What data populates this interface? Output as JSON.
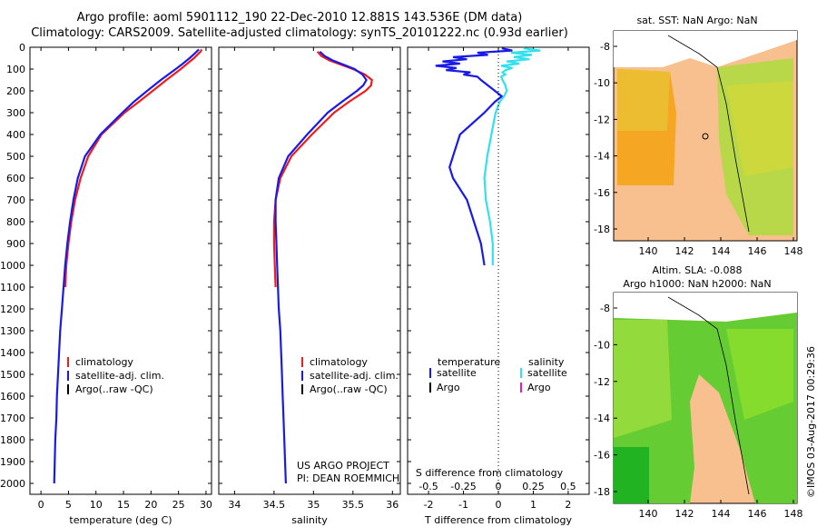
{
  "header": {
    "line1": "Argo profile: aoml 5901112_190 22-Dec-2010 12.881S 143.536E (DM data)",
    "line2": "Climatology: CARS2009. Satellite-adjusted climatology: synTS_20101222.nc (0.93d earlier)"
  },
  "colors": {
    "climatology": "#ee1c1c",
    "satellite": "#1a1ae8",
    "argo": "#000000",
    "sal_satellite": "#33e0ee",
    "sal_argo": "#d020d0",
    "land": "#f7c08e"
  },
  "chart_data": [
    {
      "type": "line",
      "panel": "temperature",
      "xlabel": "temperature (deg C)",
      "ylabel": "",
      "xlim": [
        -2,
        31
      ],
      "ylim": [
        2050,
        0
      ],
      "xticks": [
        "0",
        "5",
        "10",
        "15",
        "20",
        "25",
        "30"
      ],
      "yticks": [
        "0",
        "100",
        "200",
        "300",
        "400",
        "500",
        "600",
        "700",
        "800",
        "900",
        "1000",
        "1100",
        "1200",
        "1300",
        "1400",
        "1500",
        "1600",
        "1700",
        "1800",
        "1900",
        "2000"
      ],
      "legend": [
        "climatology",
        "satellite-adj. clim.",
        "Argo(..raw -QC)"
      ],
      "series": [
        {
          "name": "climatology",
          "depth": [
            10,
            20,
            30,
            50,
            75,
            100,
            150,
            200,
            250,
            300,
            400,
            500,
            600,
            700,
            800,
            900,
            1000,
            1100
          ],
          "values": [
            29.2,
            29.0,
            28.6,
            27.8,
            26.6,
            25.4,
            22.8,
            20.3,
            17.8,
            15.2,
            11.0,
            8.6,
            7.2,
            6.2,
            5.5,
            5.0,
            4.6,
            4.4
          ]
        },
        {
          "name": "satellite-adj. clim.",
          "depth": [
            10,
            20,
            30,
            50,
            75,
            100,
            150,
            200,
            250,
            300,
            400,
            500,
            600,
            700,
            800,
            900,
            1000,
            1100,
            1200,
            1300,
            1400,
            1500,
            1600,
            1700,
            1800,
            1900,
            2000
          ],
          "values": [
            28.7,
            28.3,
            27.9,
            27.0,
            25.8,
            24.5,
            21.8,
            19.3,
            16.9,
            14.8,
            10.8,
            8.0,
            6.7,
            5.9,
            5.3,
            4.8,
            4.4,
            4.1,
            3.8,
            3.5,
            3.3,
            3.1,
            2.9,
            2.8,
            2.6,
            2.5,
            2.4
          ]
        }
      ]
    },
    {
      "type": "line",
      "panel": "salinity",
      "xlabel": "salinity",
      "xlim": [
        33.8,
        36.1
      ],
      "ylim": [
        2050,
        0
      ],
      "xticks": [
        "34",
        "34.5",
        "35",
        "35.5",
        "36"
      ],
      "legend": [
        "climatology",
        "satellite-adj. clim.",
        "Argo(..raw -QC)"
      ],
      "series": [
        {
          "name": "climatology",
          "depth": [
            20,
            40,
            60,
            80,
            100,
            125,
            150,
            175,
            200,
            250,
            300,
            400,
            500,
            600,
            700,
            800,
            900,
            1000,
            1100
          ],
          "values": [
            35.05,
            35.1,
            35.2,
            35.35,
            35.5,
            35.65,
            35.74,
            35.73,
            35.66,
            35.45,
            35.26,
            34.98,
            34.72,
            34.58,
            34.52,
            34.5,
            34.5,
            34.51,
            34.52
          ]
        },
        {
          "name": "satellite-adj. clim.",
          "depth": [
            20,
            40,
            60,
            80,
            100,
            125,
            150,
            175,
            200,
            250,
            300,
            400,
            500,
            600,
            700,
            800,
            900,
            1000,
            1100,
            1200,
            1300,
            1400,
            1500,
            1600,
            1700,
            1800,
            1900,
            2000
          ],
          "values": [
            35.08,
            35.14,
            35.24,
            35.38,
            35.52,
            35.62,
            35.67,
            35.63,
            35.55,
            35.36,
            35.18,
            34.92,
            34.68,
            34.56,
            34.52,
            34.52,
            34.53,
            34.54,
            34.55,
            34.56,
            34.58,
            34.59,
            34.6,
            34.61,
            34.62,
            34.63,
            34.64,
            34.65
          ]
        }
      ],
      "annotation": [
        "US ARGO PROJECT",
        "PI: DEAN ROEMMICH"
      ]
    },
    {
      "type": "line",
      "panel": "difference",
      "xlabel": "T difference from climatology",
      "xlabel_top": "S difference from climatology",
      "xlim": [
        -2.6,
        2.6
      ],
      "ylim": [
        2050,
        0
      ],
      "xticks": [
        "-2",
        "-1",
        "0",
        "1",
        "2"
      ],
      "sticks": [
        "-0.5",
        "-0.25",
        "0",
        "0.25",
        "0.5"
      ],
      "legend_title": [
        "temperature",
        "salinity"
      ],
      "legend": [
        "satellite",
        "Argo",
        "satellite",
        "Argo"
      ],
      "series": [
        {
          "name": "temperature satellite",
          "depth": [
            5,
            15,
            25,
            35,
            45,
            55,
            65,
            75,
            85,
            95,
            105,
            115,
            125,
            135,
            150,
            175,
            200,
            225,
            250,
            300,
            400,
            500,
            550,
            600,
            700,
            800,
            900,
            1000
          ],
          "values": [
            0.1,
            0.4,
            -0.6,
            -0.3,
            -1.3,
            -0.9,
            -1.6,
            -1.1,
            -1.8,
            -1.2,
            -1.5,
            -0.8,
            -1.0,
            -0.6,
            -0.5,
            -0.3,
            -0.1,
            0.1,
            -0.1,
            -0.4,
            -1.1,
            -1.3,
            -1.4,
            -1.3,
            -0.9,
            -0.7,
            -0.5,
            -0.4
          ]
        },
        {
          "name": "salinity satellite",
          "depth": [
            5,
            15,
            25,
            35,
            45,
            55,
            65,
            75,
            85,
            95,
            105,
            115,
            125,
            135,
            150,
            175,
            200,
            225,
            250,
            300,
            400,
            500,
            600,
            700,
            800,
            900,
            1000
          ],
          "values": [
            0.18,
            0.3,
            0.09,
            0.24,
            0.11,
            0.22,
            0.06,
            0.15,
            0.02,
            0.1,
            0.05,
            0.03,
            0.05,
            0.02,
            0.03,
            0.05,
            0.06,
            0.04,
            0.01,
            -0.02,
            -0.05,
            -0.08,
            -0.1,
            -0.09,
            -0.06,
            -0.04,
            -0.04
          ]
        }
      ]
    }
  ],
  "maps": {
    "sst": {
      "title": "sat. SST: NaN Argo: NaN",
      "yticks": [
        "-8",
        "-10",
        "-12",
        "-14",
        "-16",
        "-18"
      ],
      "xticks": [
        "140",
        "142",
        "144",
        "146",
        "148"
      ]
    },
    "sla": {
      "title1": "Altim. SLA: -0.088",
      "title2": "Argo h1000: NaN h2000: NaN",
      "yticks": [
        "-8",
        "-10",
        "-12",
        "-14",
        "-16",
        "-18"
      ],
      "xticks": [
        "140",
        "142",
        "144",
        "146",
        "148"
      ]
    }
  },
  "footer": {
    "stamp": "©IMOS 03-Aug-2017 00:29:36"
  }
}
